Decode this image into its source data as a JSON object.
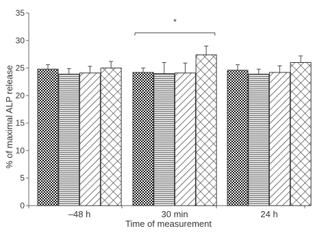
{
  "chart_data": {
    "type": "bar",
    "categories": [
      "–48 h",
      "30 min",
      "24 h"
    ],
    "series": [
      {
        "pattern": "checker",
        "values": [
          24.8,
          24.2,
          24.6
        ],
        "errors": [
          0.8,
          0.8,
          1.0
        ]
      },
      {
        "pattern": "horizontal-lines",
        "values": [
          23.9,
          24.0,
          23.9
        ],
        "errors": [
          1.0,
          2.0,
          0.9
        ]
      },
      {
        "pattern": "diagonal-lines",
        "values": [
          24.1,
          24.1,
          24.2
        ],
        "errors": [
          1.2,
          1.8,
          1.2
        ]
      },
      {
        "pattern": "crosshatch",
        "values": [
          25.0,
          27.4,
          26.0
        ],
        "errors": [
          1.2,
          1.6,
          1.2
        ]
      }
    ],
    "ylim": [
      0,
      35
    ],
    "yticks": [
      0,
      5,
      10,
      15,
      20,
      25,
      30,
      35
    ],
    "ylabel": "% of maximal ALP release",
    "xlabel": "Time of measurement",
    "significance": {
      "category": "30 min",
      "label": "*"
    }
  }
}
